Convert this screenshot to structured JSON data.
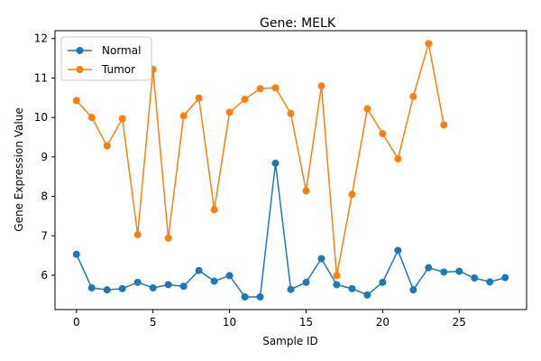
{
  "chart_data": {
    "type": "line",
    "title": "Gene: MELK",
    "xlabel": "Sample ID",
    "ylabel": "Gene Expression Value",
    "xlim": [
      -1.4,
      29.4
    ],
    "ylim": [
      5.13,
      12.2
    ],
    "xticks": [
      0,
      5,
      10,
      15,
      20,
      25
    ],
    "yticks": [
      6,
      7,
      8,
      9,
      10,
      11,
      12
    ],
    "grid": false,
    "legend_position": "top-left",
    "series": [
      {
        "name": "Normal",
        "color": "#1f77b4",
        "x": [
          0,
          1,
          2,
          3,
          4,
          5,
          6,
          7,
          8,
          9,
          10,
          11,
          12,
          13,
          14,
          15,
          16,
          17,
          18,
          19,
          20,
          21,
          22,
          23,
          24,
          25,
          26,
          27,
          28
        ],
        "values": [
          6.53,
          5.68,
          5.63,
          5.66,
          5.82,
          5.68,
          5.76,
          5.72,
          6.12,
          5.85,
          5.99,
          5.45,
          5.45,
          8.84,
          5.64,
          5.82,
          6.42,
          5.76,
          5.66,
          5.5,
          5.82,
          6.63,
          5.63,
          6.19,
          6.08,
          6.1,
          5.93,
          5.83,
          5.94
        ]
      },
      {
        "name": "Tumor",
        "color": "#ff7f0e",
        "x": [
          0,
          1,
          2,
          3,
          4,
          5,
          6,
          7,
          8,
          9,
          10,
          11,
          12,
          13,
          14,
          15,
          16,
          17,
          18,
          19,
          20,
          21,
          22,
          23,
          24
        ],
        "values": [
          10.43,
          10.0,
          9.28,
          9.97,
          7.03,
          11.22,
          6.94,
          10.04,
          10.49,
          7.66,
          10.13,
          10.46,
          10.73,
          10.75,
          10.1,
          8.14,
          10.8,
          5.99,
          8.05,
          10.22,
          9.59,
          8.95,
          10.53,
          11.87,
          9.81
        ]
      }
    ]
  }
}
